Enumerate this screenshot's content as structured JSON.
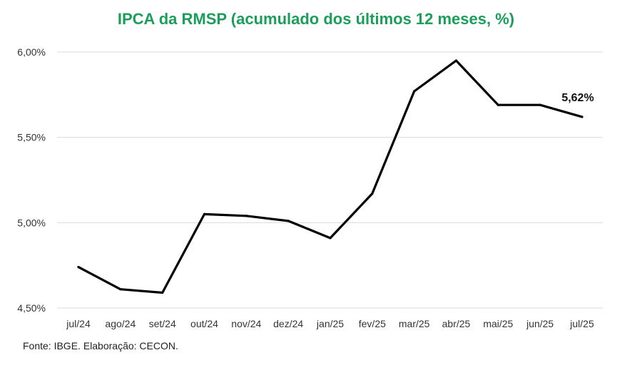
{
  "colors": {
    "title": "#1a9e5a",
    "line": "#000000",
    "grid": "#d9d9d9"
  },
  "chart_data": {
    "type": "line",
    "title": "IPCA da RMSP (acumulado dos últimos 12 meses, %)",
    "xlabel": "",
    "ylabel": "",
    "categories": [
      "jul/24",
      "ago/24",
      "set/24",
      "out/24",
      "nov/24",
      "dez/24",
      "jan/25",
      "fev/25",
      "mar/25",
      "abr/25",
      "mai/25",
      "jun/25",
      "jul/25"
    ],
    "series": [
      {
        "values": [
          4.74,
          4.61,
          4.59,
          5.05,
          5.04,
          5.01,
          4.91,
          5.17,
          5.77,
          5.95,
          5.69,
          5.69,
          5.62
        ]
      }
    ],
    "ylim": [
      4.5,
      6.0
    ],
    "yticks": [
      "4,50%",
      "5,00%",
      "5,50%",
      "6,00%"
    ],
    "ytick_values": [
      4.5,
      5.0,
      5.5,
      6.0
    ],
    "grid": true,
    "data_label": "5,62%"
  },
  "source": "Fonte: IBGE. Elaboração: CECON."
}
